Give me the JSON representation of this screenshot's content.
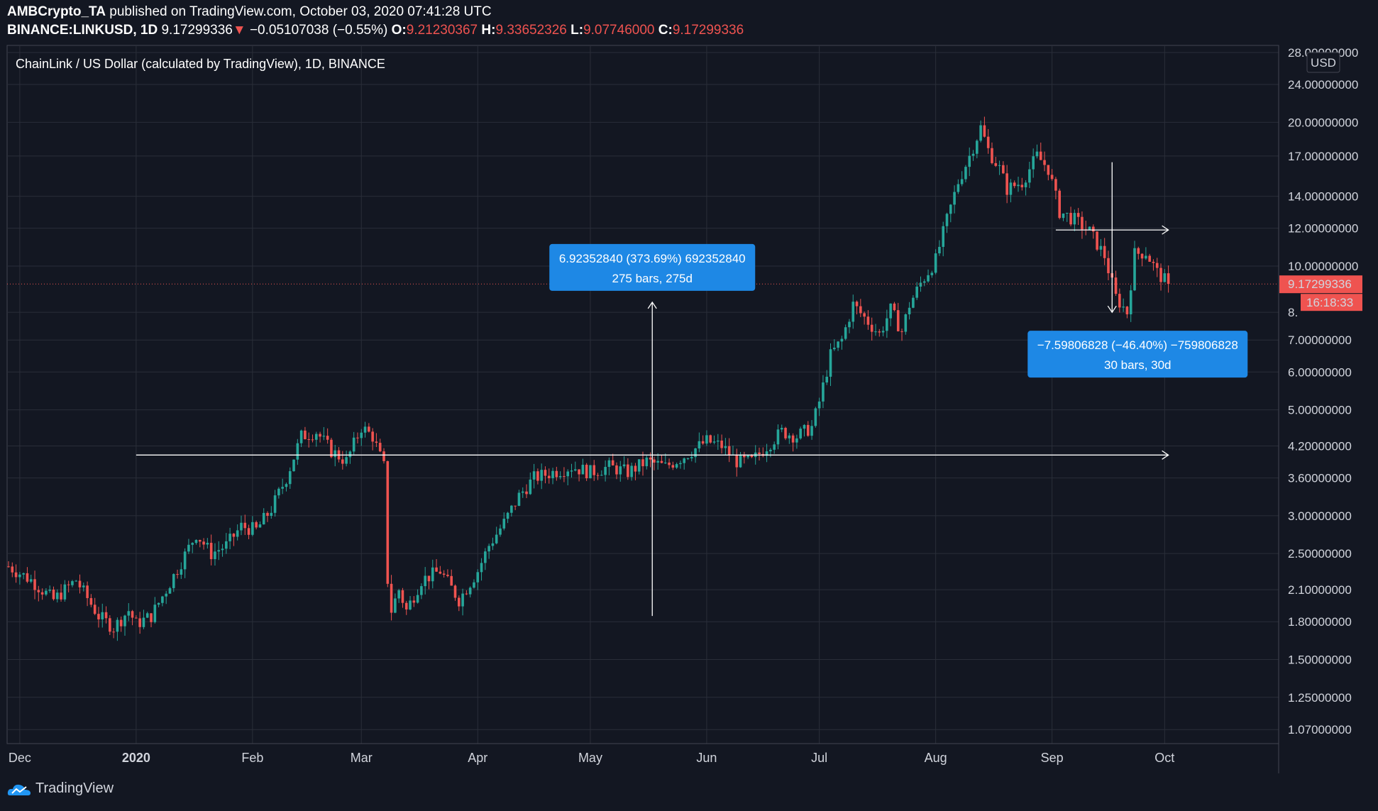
{
  "header": {
    "author": "AMBCrypto_TA",
    "published": "published on TradingView.com, October 03, 2020 07:41:28 UTC",
    "symbol": "BINANCE:LINKUSD, 1D",
    "last": "9.17299336",
    "change": "−0.05107038 (−0.55%)",
    "o_label": "O:",
    "o_val": "9.21230367",
    "h_label": "H:",
    "h_val": "9.33652326",
    "l_label": "L:",
    "l_val": "9.07746000",
    "c_label": "C:",
    "c_val": "9.17299336"
  },
  "footer": {
    "brand": "TradingView"
  },
  "colors": {
    "background": "#131722",
    "up": "#26a69a",
    "down": "#ef5350",
    "grid": "#2a2e39",
    "callout": "#1e88e5"
  },
  "chart_data": {
    "type": "candlestick",
    "title": "ChainLink / US Dollar (calculated by TradingView), 1D, BINANCE",
    "currency": "USD",
    "y_scale": "log",
    "ylim": [
      1.0,
      28.0
    ],
    "y_ticks": [
      28.0,
      24.0,
      20.0,
      17.0,
      14.0,
      12.0,
      10.0,
      8.0,
      7.0,
      6.0,
      5.0,
      4.2,
      3.6,
      3.0,
      2.5,
      2.1,
      1.8,
      1.5,
      1.25,
      1.07
    ],
    "y_tick_labels": [
      "28.00000000",
      "24.00000000",
      "20.00000000",
      "17.00000000",
      "14.00000000",
      "12.00000000",
      "10.00000000",
      "8.",
      "7.00000000",
      "6.00000000",
      "5.00000000",
      "4.20000000",
      "3.60000000",
      "3.00000000",
      "2.50000000",
      "2.10000000",
      "1.80000000",
      "1.50000000",
      "1.25000000",
      "1.07000000"
    ],
    "x_ticks": [
      "Dec",
      "2020",
      "Feb",
      "Mar",
      "Apr",
      "May",
      "Jun",
      "Jul",
      "Aug",
      "Sep",
      "Oct"
    ],
    "x_tick_days": [
      3,
      34,
      65,
      94,
      125,
      155,
      186,
      216,
      247,
      278,
      308
    ],
    "first_day": "2019-11-28",
    "last_price": 9.17299336,
    "last_price_label": "9.17299336",
    "countdown": "16:18:33",
    "anchors": [
      [
        0,
        2.35
      ],
      [
        6,
        2.2
      ],
      [
        12,
        2.0
      ],
      [
        18,
        2.2
      ],
      [
        24,
        1.85
      ],
      [
        28,
        1.75
      ],
      [
        32,
        1.9
      ],
      [
        34,
        1.78
      ],
      [
        38,
        1.85
      ],
      [
        42,
        2.1
      ],
      [
        46,
        2.4
      ],
      [
        50,
        2.75
      ],
      [
        54,
        2.5
      ],
      [
        58,
        2.6
      ],
      [
        62,
        2.85
      ],
      [
        66,
        2.8
      ],
      [
        70,
        3.1
      ],
      [
        74,
        3.6
      ],
      [
        78,
        4.4
      ],
      [
        82,
        4.5
      ],
      [
        86,
        4.1
      ],
      [
        90,
        3.9
      ],
      [
        94,
        4.6
      ],
      [
        97,
        4.4
      ],
      [
        100,
        3.8
      ],
      [
        101,
        2.2
      ],
      [
        102,
        1.9
      ],
      [
        104,
        2.1
      ],
      [
        106,
        1.9
      ],
      [
        110,
        2.2
      ],
      [
        115,
        2.3
      ],
      [
        120,
        2.0
      ],
      [
        125,
        2.3
      ],
      [
        128,
        2.6
      ],
      [
        132,
        2.9
      ],
      [
        136,
        3.3
      ],
      [
        140,
        3.6
      ],
      [
        145,
        3.7
      ],
      [
        150,
        3.8
      ],
      [
        155,
        3.7
      ],
      [
        160,
        3.8
      ],
      [
        165,
        3.7
      ],
      [
        170,
        3.9
      ],
      [
        175,
        3.8
      ],
      [
        180,
        4.0
      ],
      [
        186,
        4.3
      ],
      [
        190,
        4.2
      ],
      [
        194,
        3.9
      ],
      [
        198,
        3.9
      ],
      [
        202,
        4.2
      ],
      [
        206,
        4.5
      ],
      [
        210,
        4.4
      ],
      [
        214,
        4.6
      ],
      [
        216,
        5.2
      ],
      [
        219,
        6.5
      ],
      [
        222,
        7.0
      ],
      [
        225,
        8.3
      ],
      [
        228,
        7.8
      ],
      [
        232,
        7.2
      ],
      [
        235,
        8.1
      ],
      [
        238,
        7.3
      ],
      [
        240,
        8.3
      ],
      [
        243,
        9.2
      ],
      [
        247,
        10.3
      ],
      [
        250,
        12.5
      ],
      [
        253,
        15.0
      ],
      [
        256,
        17.0
      ],
      [
        259,
        19.5
      ],
      [
        261,
        17.5
      ],
      [
        264,
        16.0
      ],
      [
        266,
        14.5
      ],
      [
        270,
        15.0
      ],
      [
        274,
        17.0
      ],
      [
        277,
        16.0
      ],
      [
        280,
        13.0
      ],
      [
        284,
        12.5
      ],
      [
        288,
        11.8
      ],
      [
        292,
        10.5
      ],
      [
        295,
        8.6
      ],
      [
        298,
        8.0
      ],
      [
        300,
        10.6
      ],
      [
        303,
        10.7
      ],
      [
        306,
        9.7
      ],
      [
        309,
        9.17
      ]
    ],
    "measurements": [
      {
        "label_line1": "6.92352840 (373.69%) 692352840",
        "label_line2": "275 bars, 275d",
        "from_day": 34,
        "to_day": 309,
        "from_price": 4.02,
        "to_price": 8.4,
        "base_price": 1.85,
        "direction": "up"
      },
      {
        "label_line1": "−7.59806828 (−46.40%) −759806828",
        "label_line2": "30 bars, 30d",
        "from_day": 279,
        "to_day": 309,
        "from_price": 11.9,
        "to_price": 8.0,
        "top_price": 16.5,
        "direction": "down"
      }
    ]
  }
}
